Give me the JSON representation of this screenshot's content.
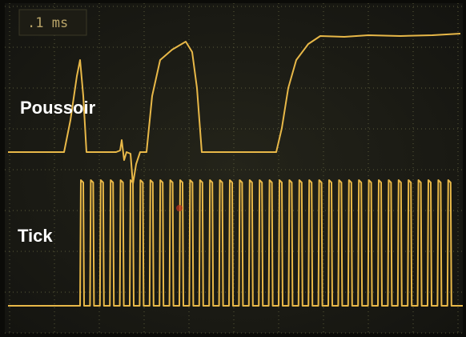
{
  "header": {
    "timebase": ".1 ms"
  },
  "traces": [
    {
      "label": "Poussoir"
    },
    {
      "label": "Tick"
    }
  ]
}
